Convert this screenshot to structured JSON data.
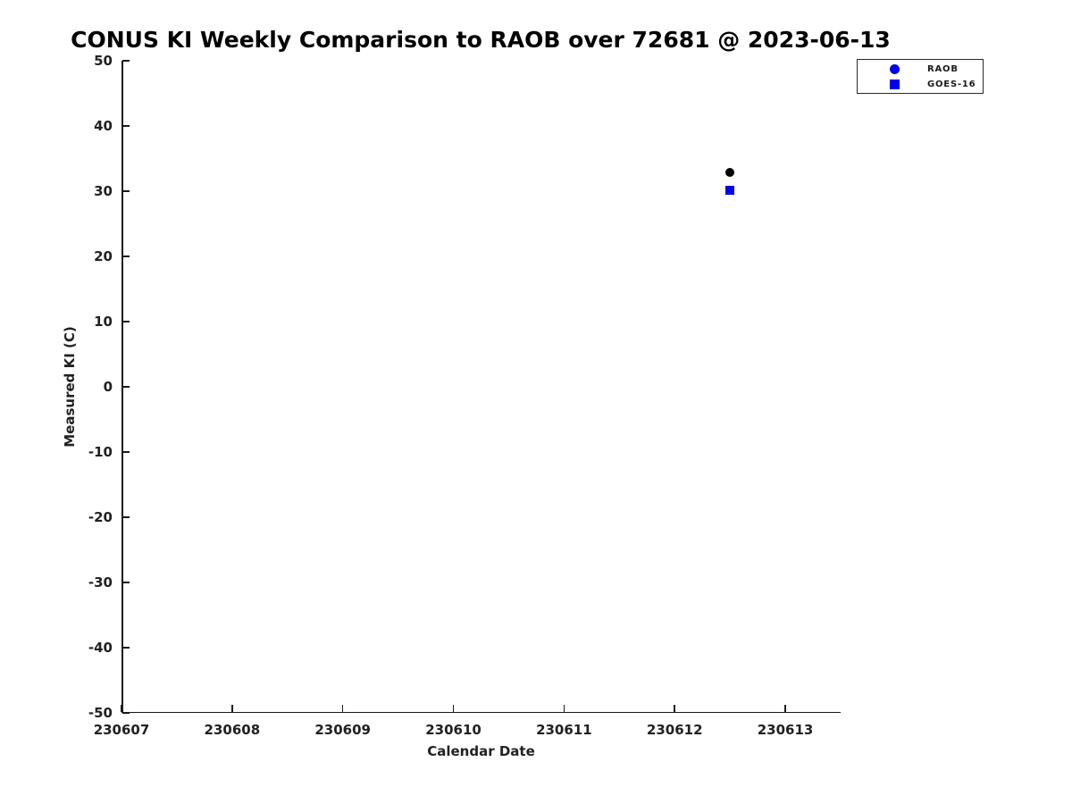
{
  "chart_data": {
    "type": "scatter",
    "title": "CONUS KI Weekly Comparison to RAOB over 72681 @ 2023-06-13",
    "xlabel": "Calendar Date",
    "ylabel": "Measured KI (C)",
    "xlim": [
      230607,
      230613.5
    ],
    "ylim": [
      -50,
      50
    ],
    "x_ticks": [
      230607,
      230608,
      230609,
      230610,
      230611,
      230612,
      230613
    ],
    "y_ticks": [
      50,
      40,
      30,
      20,
      10,
      0,
      -10,
      -20,
      -30,
      -40,
      -50
    ],
    "grid": false,
    "axis_color": "#1a1a1a",
    "text_color": "#212121",
    "legend": {
      "position": "top-right-outside",
      "entries": [
        {
          "label": "RAOB",
          "marker": "circle-icon",
          "color": "#0000ee"
        },
        {
          "label": "GOES-16",
          "marker": "square-icon",
          "color": "#0000ee"
        }
      ]
    },
    "series": [
      {
        "name": "RAOB",
        "marker": "circle",
        "data_marker_color": "#000000",
        "legend_marker_color": "#0000ee",
        "points": [
          {
            "x": 230612.5,
            "y": 32.9
          }
        ]
      },
      {
        "name": "GOES-16",
        "marker": "square",
        "data_marker_color": "#0000ee",
        "legend_marker_color": "#0000ee",
        "points": [
          {
            "x": 230612.5,
            "y": 30.1
          }
        ]
      }
    ]
  }
}
